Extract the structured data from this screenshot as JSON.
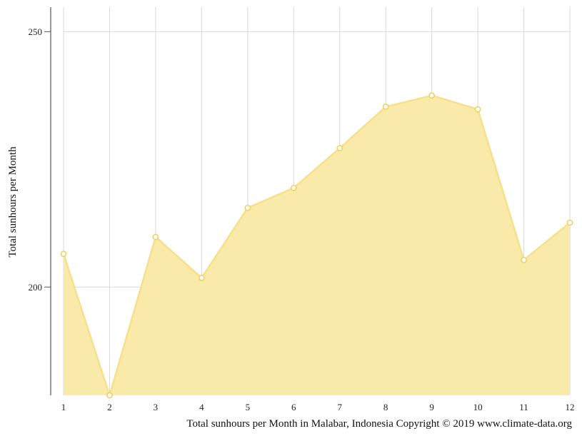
{
  "chart_data": {
    "type": "area",
    "x": [
      1,
      2,
      3,
      4,
      5,
      6,
      7,
      8,
      9,
      10,
      11,
      12
    ],
    "x_tick_labels": [
      "1",
      "2",
      "3",
      "4",
      "5",
      "6",
      "7",
      "8",
      "9",
      "10",
      "11",
      "12"
    ],
    "values": [
      206.5,
      178.8,
      209.8,
      201.8,
      215.5,
      219.4,
      227.2,
      235.3,
      237.5,
      234.8,
      205.3,
      212.6
    ],
    "ylim": [
      178.8,
      254.8
    ],
    "y_ticks": [
      200,
      250
    ],
    "y_tick_labels": [
      "200",
      "250"
    ],
    "ylabel": "Total sunhours per Month",
    "caption": "Total sunhours per Month in Malabar, Indonesia Copyright © 2019 www.climate-data.org",
    "grid": true,
    "colors": {
      "fill": "#f9eaa9",
      "line": "#f7e08c",
      "marker_fill": "#ffffff",
      "marker_stroke": "#f0cf5c",
      "grid": "#d8d8d8",
      "axis": "#555555"
    }
  }
}
